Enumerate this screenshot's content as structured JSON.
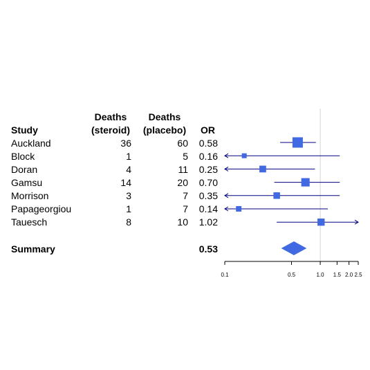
{
  "headers": {
    "study": "Study",
    "deaths_steroid_line1": "Deaths",
    "deaths_steroid_line2": "(steroid)",
    "deaths_placebo_line1": "Deaths",
    "deaths_placebo_line2": "(placebo)",
    "or": "OR"
  },
  "summary": {
    "label": "Summary",
    "or_text": "0.53"
  },
  "colors": {
    "marker": "#4169e1",
    "line": "#000080",
    "reference": "#d3d3d3",
    "axis": "#000000"
  },
  "chart_data": {
    "type": "forest",
    "x_scale": "log",
    "x_ticks": [
      0.1,
      0.5,
      1.0,
      1.5,
      2.0,
      2.5
    ],
    "x_tick_labels": [
      "0.1",
      "0.5",
      "1.0",
      "1.5",
      "2.0",
      "2.5"
    ],
    "xlim": [
      0.1,
      2.5
    ],
    "reference_line": 1.0,
    "studies": [
      {
        "study": "Auckland",
        "deaths_steroid": "36",
        "deaths_placebo": "60",
        "or_text": "0.58",
        "or": 0.58,
        "lower": 0.38,
        "upper": 0.9,
        "weight": 1.0,
        "arrow_left": false,
        "arrow_right": false
      },
      {
        "study": "Block",
        "deaths_steroid": "1",
        "deaths_placebo": "5",
        "or_text": "0.16",
        "or": 0.16,
        "lower": 0.1,
        "upper": 1.6,
        "weight": 0.22,
        "arrow_left": true,
        "arrow_right": false
      },
      {
        "study": "Doran",
        "deaths_steroid": "4",
        "deaths_placebo": "11",
        "or_text": "0.25",
        "or": 0.25,
        "lower": 0.1,
        "upper": 0.88,
        "weight": 0.42,
        "arrow_left": true,
        "arrow_right": false
      },
      {
        "study": "Gamsu",
        "deaths_steroid": "14",
        "deaths_placebo": "20",
        "or_text": "0.70",
        "or": 0.7,
        "lower": 0.33,
        "upper": 1.6,
        "weight": 0.65,
        "arrow_left": false,
        "arrow_right": false
      },
      {
        "study": "Morrison",
        "deaths_steroid": "3",
        "deaths_placebo": "7",
        "or_text": "0.35",
        "or": 0.35,
        "lower": 0.1,
        "upper": 1.6,
        "weight": 0.4,
        "arrow_left": true,
        "arrow_right": false
      },
      {
        "study": "Papageorgiou",
        "deaths_steroid": "1",
        "deaths_placebo": "7",
        "or_text": "0.14",
        "or": 0.14,
        "lower": 0.1,
        "upper": 1.2,
        "weight": 0.28,
        "arrow_left": true,
        "arrow_right": false
      },
      {
        "study": "Tauesch",
        "deaths_steroid": "8",
        "deaths_placebo": "10",
        "or_text": "1.02",
        "or": 1.02,
        "lower": 0.35,
        "upper": 2.5,
        "weight": 0.48,
        "arrow_left": false,
        "arrow_right": true
      }
    ],
    "summary": {
      "or": 0.53,
      "lower": 0.39,
      "upper": 0.72
    }
  }
}
